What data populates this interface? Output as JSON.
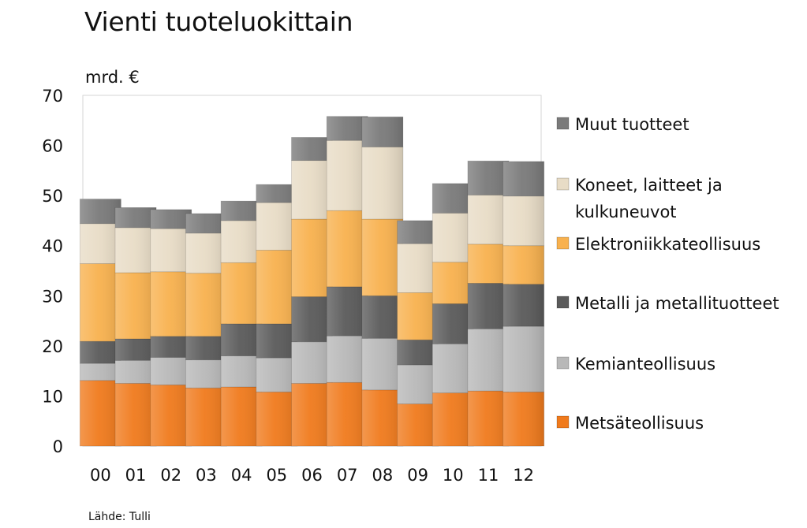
{
  "title": "Vienti tuoteluokittain",
  "unit_label": "mrd. €",
  "source": "Lähde: Tulli",
  "chart_data": {
    "type": "bar",
    "stacked": true,
    "title": "Vienti tuoteluokittain",
    "ylabel": "mrd. €",
    "xlabel": "",
    "ylim": [
      0,
      70
    ],
    "yticks": [
      0,
      10,
      20,
      30,
      40,
      50,
      60,
      70
    ],
    "grid": false,
    "legend_position": "right",
    "categories": [
      "00",
      "01",
      "02",
      "03",
      "04",
      "05",
      "06",
      "07",
      "08",
      "09",
      "10",
      "11",
      "12"
    ],
    "series": [
      {
        "name": "Metsäteollisuus",
        "color": "#f07a1c",
        "values": [
          13.1,
          12.5,
          12.2,
          11.6,
          11.8,
          10.8,
          12.5,
          12.7,
          11.2,
          8.4,
          10.6,
          11.0,
          10.8
        ]
      },
      {
        "name": "Kemianteollisuus",
        "color": "#b8b8b8",
        "values": [
          3.4,
          4.6,
          5.5,
          5.6,
          6.2,
          6.8,
          8.3,
          9.3,
          10.3,
          7.8,
          9.8,
          12.4,
          13.1
        ]
      },
      {
        "name": "Metalli ja metallituotteet",
        "color": "#5a5a5a",
        "values": [
          4.4,
          4.3,
          4.2,
          4.7,
          6.4,
          6.8,
          9.0,
          9.8,
          8.5,
          5.0,
          8.0,
          9.1,
          8.4
        ]
      },
      {
        "name": "Elektroniikkateollisuus",
        "color": "#f8b14e",
        "values": [
          15.5,
          13.2,
          12.9,
          12.6,
          12.2,
          14.7,
          15.5,
          15.2,
          15.3,
          9.4,
          8.3,
          7.8,
          7.7
        ]
      },
      {
        "name": "Koneet, laitteet ja kulkuneuvot",
        "color": "#e8dcc6",
        "values": [
          8.0,
          9.0,
          8.6,
          8.0,
          8.4,
          9.5,
          11.7,
          14.0,
          14.4,
          9.8,
          9.8,
          9.8,
          9.9
        ]
      },
      {
        "name": "Muut tuotteet",
        "color": "#7a7a7a",
        "values": [
          4.9,
          4.0,
          3.8,
          3.9,
          3.9,
          3.6,
          4.6,
          4.8,
          6.0,
          4.6,
          5.9,
          6.8,
          6.9
        ]
      }
    ]
  }
}
